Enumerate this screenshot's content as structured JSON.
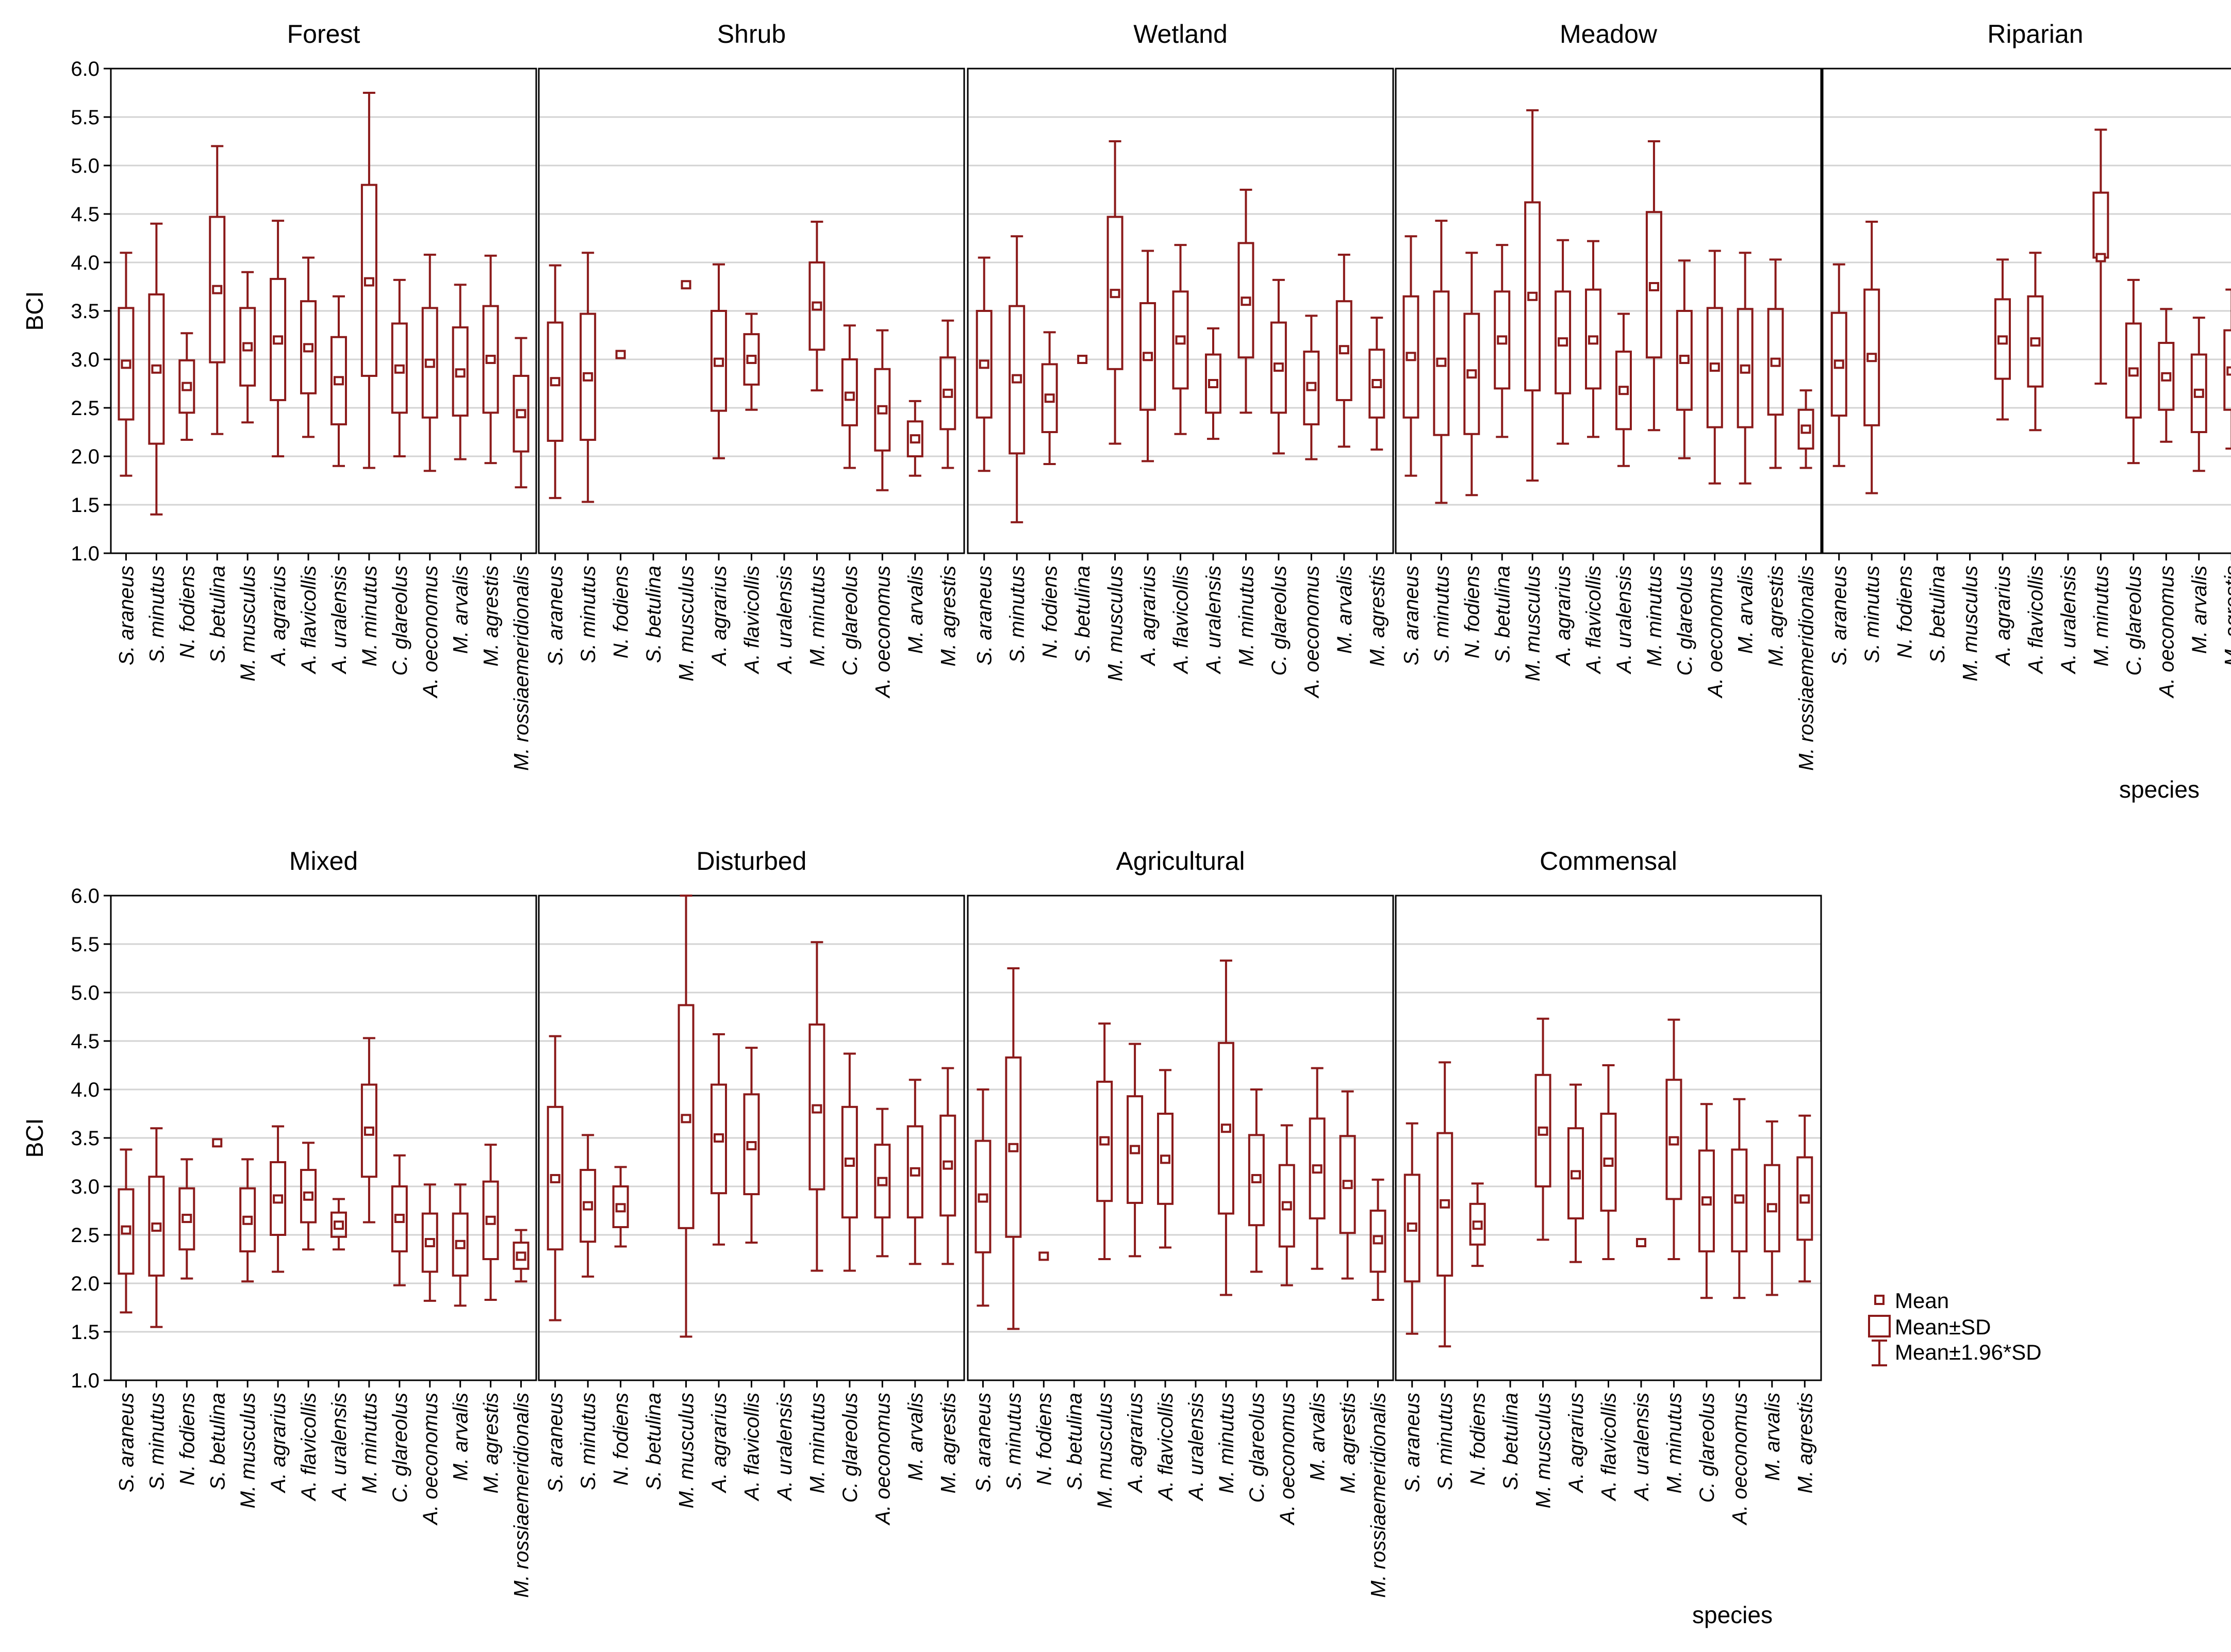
{
  "figure": {
    "y_label": "BCI",
    "x_label": "species",
    "y_ticks": [
      "1.0",
      "1.5",
      "2.0",
      "2.5",
      "3.0",
      "3.5",
      "4.0",
      "4.5",
      "5.0",
      "5.5",
      "6.0"
    ],
    "colors": {
      "box": "#8b1a1a",
      "grid": "#d3d3d3",
      "frame": "#000000"
    },
    "legend": [
      "Mean",
      "Mean±SD",
      "Mean±1.96*SD"
    ]
  },
  "chart_data": [
    {
      "type": "box",
      "title": "Forest",
      "ylabel": "BCI",
      "ylim": [
        1.0,
        6.0
      ],
      "grid": true,
      "categories": [
        "S. araneus",
        "S. minutus",
        "N. fodiens",
        "S. betulina",
        "M. musculus",
        "A. agrarius",
        "A. flavicollis",
        "A. uralensis",
        "M. minutus",
        "C. glareolus",
        "A. oeconomus",
        "M. arvalis",
        "M. agrestis",
        "M. rossiaemeridionalis"
      ],
      "mean": [
        2.95,
        2.9,
        2.72,
        3.72,
        3.13,
        3.2,
        3.12,
        2.78,
        3.8,
        2.9,
        2.96,
        2.86,
        3.0,
        2.44
      ],
      "sd_lo": [
        2.38,
        2.13,
        2.45,
        2.97,
        2.73,
        2.58,
        2.65,
        2.33,
        2.83,
        2.45,
        2.4,
        2.42,
        2.45,
        2.05
      ],
      "sd_hi": [
        3.53,
        3.67,
        2.99,
        4.47,
        3.53,
        3.83,
        3.6,
        3.23,
        4.8,
        3.37,
        3.53,
        3.33,
        3.55,
        2.83
      ],
      "ci_lo": [
        1.8,
        1.4,
        2.17,
        2.23,
        2.35,
        2.0,
        2.2,
        1.9,
        1.88,
        2.0,
        1.85,
        1.97,
        1.93,
        1.68
      ],
      "ci_hi": [
        4.1,
        4.4,
        3.27,
        5.2,
        3.9,
        4.43,
        4.05,
        3.65,
        5.75,
        3.82,
        4.08,
        3.77,
        4.07,
        3.22
      ]
    },
    {
      "type": "box",
      "title": "Shrub",
      "ylim": [
        1.0,
        6.0
      ],
      "grid": true,
      "categories": [
        "S. araneus",
        "S. minutus",
        "N. fodiens",
        "S. betulina",
        "M. musculus",
        "A. agrarius",
        "A. flavicollis",
        "A. uralensis",
        "M. minutus",
        "C. glareolus",
        "A. oeconomus",
        "M. arvalis",
        "M. agrestis"
      ],
      "mean": [
        2.77,
        2.82,
        3.05,
        null,
        3.77,
        2.97,
        3.0,
        null,
        3.55,
        2.62,
        2.48,
        2.18,
        2.65
      ],
      "sd_lo": [
        2.16,
        2.17,
        null,
        null,
        null,
        2.47,
        2.74,
        null,
        3.1,
        2.32,
        2.06,
        2.0,
        2.28
      ],
      "sd_hi": [
        3.38,
        3.47,
        null,
        null,
        null,
        3.5,
        3.26,
        null,
        4.0,
        3.0,
        2.9,
        2.36,
        3.02
      ],
      "ci_lo": [
        1.57,
        1.53,
        null,
        null,
        null,
        1.98,
        2.48,
        null,
        2.68,
        1.88,
        1.65,
        1.8,
        1.88
      ],
      "ci_hi": [
        3.97,
        4.1,
        null,
        null,
        null,
        3.98,
        3.47,
        null,
        4.42,
        3.35,
        3.3,
        2.57,
        3.4
      ]
    },
    {
      "type": "box",
      "title": "Wetland",
      "ylim": [
        1.0,
        6.0
      ],
      "grid": true,
      "categories": [
        "S. araneus",
        "S. minutus",
        "N. fodiens",
        "S. betulina",
        "M. musculus",
        "A. agrarius",
        "A. flavicollis",
        "A. uralensis",
        "M. minutus",
        "C. glareolus",
        "A. oeconomus",
        "M. arvalis",
        "M. agrestis"
      ],
      "mean": [
        2.95,
        2.8,
        2.6,
        3.0,
        3.68,
        3.03,
        3.2,
        2.75,
        3.6,
        2.92,
        2.72,
        3.1,
        2.75
      ],
      "sd_lo": [
        2.4,
        2.03,
        2.25,
        null,
        2.9,
        2.48,
        2.7,
        2.45,
        3.02,
        2.45,
        2.33,
        2.58,
        2.4
      ],
      "sd_hi": [
        3.5,
        3.55,
        2.95,
        null,
        4.47,
        3.58,
        3.7,
        3.05,
        4.2,
        3.38,
        3.08,
        3.6,
        3.1
      ],
      "ci_lo": [
        1.85,
        1.32,
        1.92,
        null,
        2.13,
        1.95,
        2.23,
        2.18,
        2.45,
        2.03,
        1.97,
        2.1,
        2.07
      ],
      "ci_hi": [
        4.05,
        4.27,
        3.28,
        null,
        5.25,
        4.12,
        4.18,
        3.32,
        4.75,
        3.82,
        3.45,
        4.08,
        3.43
      ]
    },
    {
      "type": "box",
      "title": "Meadow",
      "ylim": [
        1.0,
        6.0
      ],
      "grid": true,
      "categories": [
        "S. araneus",
        "S. minutus",
        "N. fodiens",
        "S. betulina",
        "M. musculus",
        "A. agrarius",
        "A. flavicollis",
        "A. uralensis",
        "M. minutus",
        "C. glareolus",
        "A. oeconomus",
        "M. arvalis",
        "M. agrestis",
        "M. rossiaemeridionalis"
      ],
      "mean": [
        3.03,
        2.97,
        2.85,
        3.2,
        3.65,
        3.18,
        3.2,
        2.68,
        3.75,
        3.0,
        2.92,
        2.9,
        2.97,
        2.28
      ],
      "sd_lo": [
        2.4,
        2.22,
        2.23,
        2.7,
        2.68,
        2.65,
        2.7,
        2.28,
        3.02,
        2.48,
        2.3,
        2.3,
        2.43,
        2.08
      ],
      "sd_hi": [
        3.65,
        3.7,
        3.47,
        3.7,
        4.62,
        3.7,
        3.72,
        3.08,
        4.52,
        3.5,
        3.53,
        3.52,
        3.52,
        2.48
      ],
      "ci_lo": [
        1.8,
        1.52,
        1.6,
        2.2,
        1.75,
        2.13,
        2.2,
        1.9,
        2.27,
        1.98,
        1.72,
        1.72,
        1.88,
        1.88
      ],
      "ci_hi": [
        4.27,
        4.43,
        4.1,
        4.18,
        5.57,
        4.23,
        4.22,
        3.47,
        5.25,
        4.02,
        4.12,
        4.1,
        4.03,
        2.68
      ]
    },
    {
      "type": "box",
      "title": "Riparian",
      "ylim": [
        1.0,
        6.0
      ],
      "grid": true,
      "categories": [
        "S. araneus",
        "S. minutus",
        "N. fodiens",
        "S. betulina",
        "M. musculus",
        "A. agrarius",
        "A. flavicollis",
        "A. uralensis",
        "M. minutus",
        "C. glareolus",
        "A. oeconomus",
        "M. arvalis",
        "M. agrestis"
      ],
      "mean": [
        2.95,
        3.02,
        null,
        null,
        null,
        3.2,
        3.18,
        null,
        4.05,
        2.87,
        2.82,
        2.65,
        2.88
      ],
      "sd_lo": [
        2.42,
        2.32,
        null,
        null,
        null,
        2.8,
        2.72,
        null,
        4.05,
        2.4,
        2.48,
        2.25,
        2.48
      ],
      "sd_hi": [
        3.48,
        3.72,
        null,
        null,
        null,
        3.62,
        3.65,
        null,
        4.72,
        3.37,
        3.17,
        3.05,
        3.3
      ],
      "ci_lo": [
        1.9,
        1.62,
        null,
        null,
        null,
        2.38,
        2.27,
        null,
        2.75,
        1.93,
        2.15,
        1.85,
        2.08
      ],
      "ci_hi": [
        3.98,
        4.42,
        null,
        null,
        null,
        4.03,
        4.1,
        null,
        5.37,
        3.82,
        3.52,
        3.43,
        3.72
      ]
    },
    {
      "type": "box",
      "title": "Mixed",
      "ylabel": "BCI",
      "ylim": [
        1.0,
        6.0
      ],
      "grid": true,
      "categories": [
        "S. araneus",
        "S. minutus",
        "N. fodiens",
        "S. betulina",
        "M. musculus",
        "A. agrarius",
        "A. flavicollis",
        "A. uralensis",
        "M. minutus",
        "C. glareolus",
        "A. oeconomus",
        "M. arvalis",
        "M. agrestis",
        "M. rossiaemeridionalis"
      ],
      "mean": [
        2.55,
        2.58,
        2.67,
        3.45,
        2.65,
        2.87,
        2.9,
        2.6,
        3.57,
        2.67,
        2.42,
        2.4,
        2.65,
        2.28
      ],
      "sd_lo": [
        2.1,
        2.08,
        2.35,
        null,
        2.33,
        2.5,
        2.63,
        2.48,
        3.1,
        2.33,
        2.12,
        2.08,
        2.25,
        2.15
      ],
      "sd_hi": [
        2.97,
        3.1,
        2.98,
        null,
        2.98,
        3.25,
        3.17,
        2.73,
        4.05,
        3.0,
        2.72,
        2.72,
        3.05,
        2.42
      ],
      "ci_lo": [
        1.7,
        1.55,
        2.05,
        null,
        2.02,
        2.12,
        2.35,
        2.35,
        2.63,
        1.98,
        1.82,
        1.77,
        1.83,
        2.02
      ],
      "ci_hi": [
        3.38,
        3.6,
        3.28,
        null,
        3.28,
        3.62,
        3.45,
        2.87,
        4.53,
        3.32,
        3.02,
        3.02,
        3.43,
        2.55
      ]
    },
    {
      "type": "box",
      "title": "Disturbed",
      "ylim": [
        1.0,
        6.0
      ],
      "grid": true,
      "categories": [
        "S. araneus",
        "S. minutus",
        "N. fodiens",
        "S. betulina",
        "M. musculus",
        "A. agrarius",
        "A. flavicollis",
        "A. uralensis",
        "M. minutus",
        "C. glareolus",
        "A. oeconomus",
        "M. arvalis",
        "M. agrestis"
      ],
      "mean": [
        3.08,
        2.8,
        2.78,
        null,
        3.7,
        3.5,
        3.42,
        null,
        3.8,
        3.25,
        3.05,
        3.15,
        3.22
      ],
      "sd_lo": [
        2.35,
        2.43,
        2.58,
        null,
        2.57,
        2.93,
        2.92,
        null,
        2.97,
        2.68,
        2.68,
        2.68,
        2.7
      ],
      "sd_hi": [
        3.82,
        3.17,
        3.0,
        null,
        4.87,
        4.05,
        3.95,
        null,
        4.67,
        3.82,
        3.43,
        3.62,
        3.73
      ],
      "ci_lo": [
        1.62,
        2.07,
        2.38,
        null,
        1.45,
        2.4,
        2.42,
        null,
        2.13,
        2.13,
        2.28,
        2.2,
        2.2
      ],
      "ci_hi": [
        4.55,
        3.53,
        3.2,
        null,
        6.0,
        4.57,
        4.43,
        null,
        5.52,
        4.37,
        3.8,
        4.1,
        4.22
      ]
    },
    {
      "type": "box",
      "title": "Agricultural",
      "ylim": [
        1.0,
        6.0
      ],
      "grid": true,
      "categories": [
        "S. araneus",
        "S. minutus",
        "N. fodiens",
        "S. betulina",
        "M. musculus",
        "A. agrarius",
        "A. flavicollis",
        "A. uralensis",
        "M. minutus",
        "C. glareolus",
        "A. oeconomus",
        "M. arvalis",
        "M. agrestis",
        "M. rossiaemeridionalis"
      ],
      "mean": [
        2.88,
        3.4,
        2.28,
        null,
        3.47,
        3.38,
        3.28,
        null,
        3.6,
        3.08,
        2.8,
        3.18,
        3.02,
        2.45
      ],
      "sd_lo": [
        2.32,
        2.48,
        null,
        null,
        2.85,
        2.83,
        2.82,
        null,
        2.72,
        2.6,
        2.38,
        2.67,
        2.52,
        2.12
      ],
      "sd_hi": [
        3.47,
        4.33,
        null,
        null,
        4.08,
        3.93,
        3.75,
        null,
        4.48,
        3.53,
        3.22,
        3.7,
        3.52,
        2.75
      ],
      "ci_lo": [
        1.77,
        1.53,
        null,
        null,
        2.25,
        2.28,
        2.37,
        null,
        1.88,
        2.12,
        1.98,
        2.15,
        2.05,
        1.83
      ],
      "ci_hi": [
        4.0,
        5.25,
        null,
        null,
        4.68,
        4.47,
        4.2,
        null,
        5.33,
        4.0,
        3.63,
        4.22,
        3.98,
        3.07
      ]
    },
    {
      "type": "box",
      "title": "Commensal",
      "ylim": [
        1.0,
        6.0
      ],
      "grid": true,
      "categories": [
        "S. araneus",
        "S. minutus",
        "N. fodiens",
        "S. betulina",
        "M. musculus",
        "A. agrarius",
        "A. flavicollis",
        "A. uralensis",
        "M. minutus",
        "C. glareolus",
        "A. oeconomus",
        "M. arvalis",
        "M. agrestis"
      ],
      "mean": [
        2.58,
        2.82,
        2.6,
        null,
        3.57,
        3.12,
        3.25,
        2.42,
        3.47,
        2.85,
        2.87,
        2.78,
        2.87
      ],
      "sd_lo": [
        2.02,
        2.08,
        2.4,
        null,
        3.0,
        2.67,
        2.75,
        null,
        2.87,
        2.33,
        2.33,
        2.33,
        2.45
      ],
      "sd_hi": [
        3.12,
        3.55,
        2.82,
        null,
        4.15,
        3.6,
        3.75,
        null,
        4.1,
        3.37,
        3.38,
        3.22,
        3.3
      ],
      "ci_lo": [
        1.48,
        1.35,
        2.18,
        null,
        2.45,
        2.22,
        2.25,
        null,
        2.25,
        1.85,
        1.85,
        1.88,
        2.02
      ],
      "ci_hi": [
        3.65,
        4.28,
        3.03,
        null,
        4.73,
        4.05,
        4.25,
        null,
        4.72,
        3.85,
        3.9,
        3.67,
        3.73
      ]
    }
  ]
}
